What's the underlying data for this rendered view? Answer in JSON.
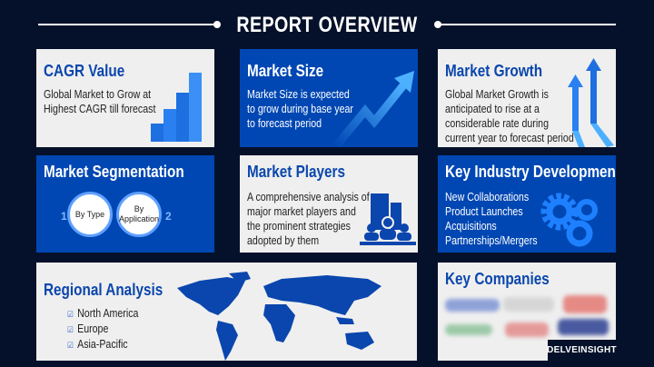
{
  "header": {
    "title": "REPORT OVERVIEW"
  },
  "cards": {
    "cagr": {
      "title": "CAGR Value",
      "lines": [
        "Global Market to Grow at",
        "Highest CAGR till forecast"
      ]
    },
    "size": {
      "title": "Market Size",
      "lines": [
        "Market Size is expected",
        "to grow during base year",
        "to forecast period"
      ]
    },
    "growth": {
      "title": "Market Growth",
      "lines": [
        "Global Market Growth is",
        "anticipated to rise at a",
        "considerable rate during",
        "current year to forecast period"
      ]
    },
    "segmentation": {
      "title": "Market Segmentation",
      "items": [
        {
          "num": "1",
          "label": "By Type"
        },
        {
          "num": "2",
          "label": "By Application"
        }
      ]
    },
    "players": {
      "title": "Market Players",
      "lines": [
        "A comprehensive analysis of",
        "major market players and",
        "the prominent strategies",
        "adopted by them"
      ]
    },
    "development": {
      "title": "Key Industry Development",
      "items": [
        "New Collaborations",
        "Product Launches",
        "Acquisitions",
        "Partnerships/Mergers"
      ]
    },
    "regional": {
      "title": "Regional Analysis",
      "items": [
        "North America",
        "Europe",
        "Asia-Pacific"
      ]
    },
    "companies": {
      "title": "Key Companies"
    }
  },
  "brand": {
    "logo_text": "DELVEINSIGHT"
  },
  "colors": {
    "background": "#05112a",
    "accent_blue": "#0047b3",
    "card_light": "#efefef",
    "title_blue": "#0a46ad"
  }
}
